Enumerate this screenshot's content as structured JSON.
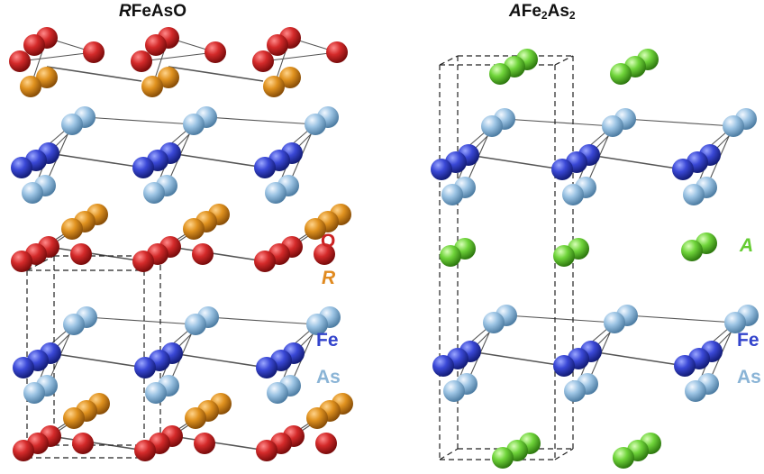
{
  "titles": {
    "left": {
      "prefix": "R",
      "rest": "FeAsO"
    },
    "right": {
      "prefix": "A",
      "p1": "Fe",
      "s1": "2",
      "p2": "As",
      "s2": "2"
    }
  },
  "legend_left": [
    {
      "label": "O",
      "color": "#cc2222"
    },
    {
      "label": "R",
      "color": "#e08a20"
    },
    {
      "label": "Fe",
      "color": "#3344cc"
    },
    {
      "label": "As",
      "color": "#8ab4d6"
    }
  ],
  "legend_right": [
    {
      "label": "A",
      "color": "#66cc33"
    },
    {
      "label": "Fe",
      "color": "#3344cc"
    },
    {
      "label": "As",
      "color": "#8ab4d6"
    }
  ],
  "colors": {
    "O": "#d42a2a",
    "R": "#e0921f",
    "Fe": "#3a48d6",
    "As": "#9cc4e4",
    "A": "#6fd43a"
  }
}
